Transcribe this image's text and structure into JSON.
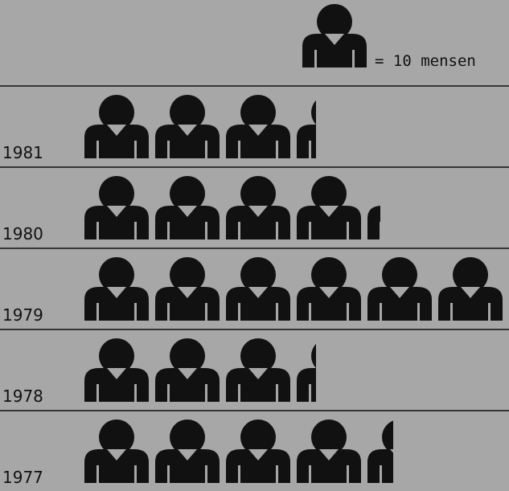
{
  "chart_data": {
    "type": "pictogram",
    "legend_label": "= 10 mensen",
    "unit": 10,
    "color": "#111111",
    "categories": [
      "1981",
      "1980",
      "1979",
      "1978",
      "1977"
    ],
    "values": [
      33,
      42,
      60,
      33,
      44
    ]
  }
}
